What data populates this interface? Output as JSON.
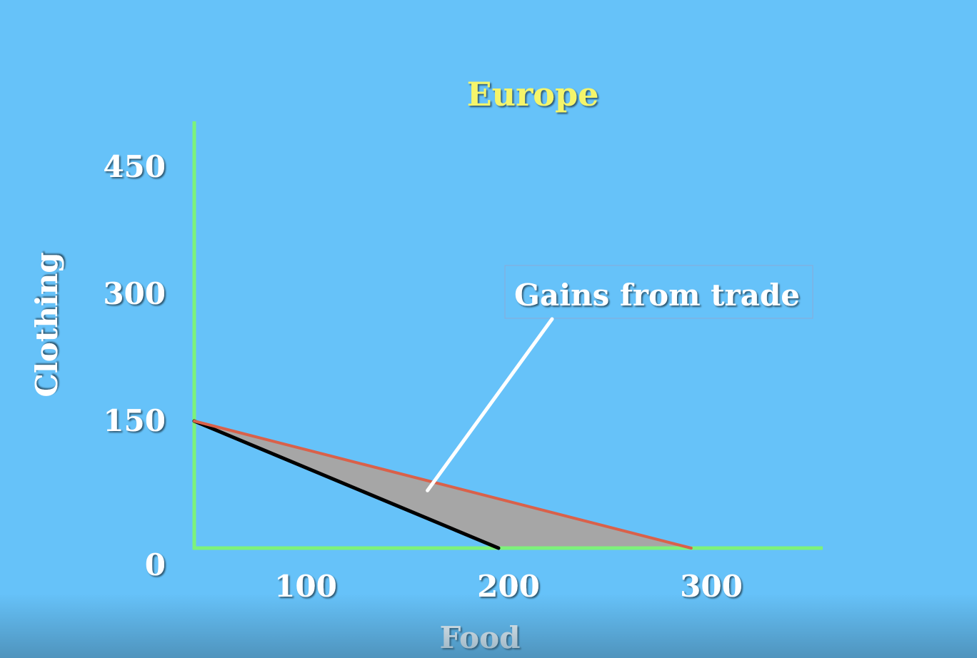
{
  "chart_data": {
    "type": "line",
    "title": "Europe",
    "xlabel": "Food",
    "ylabel": "Clothing",
    "x_ticks": [
      100,
      200,
      300
    ],
    "y_ticks": [
      0,
      150,
      300,
      450
    ],
    "xlim": [
      50,
      350
    ],
    "ylim": [
      0,
      450
    ],
    "series": [
      {
        "color": "#000000",
        "x": [
          50,
          200
        ],
        "y": [
          150,
          0
        ]
      },
      {
        "color": "#d9614a",
        "x": [
          50,
          295
        ],
        "y": [
          150,
          0
        ]
      }
    ],
    "shaded_region": {
      "color": "#a6a6a6",
      "x": [
        50,
        200,
        295
      ],
      "y": [
        150,
        0,
        0
      ]
    },
    "annotation": {
      "text": "Gains from trade",
      "point_to": {
        "x": 165,
        "y": 68
      }
    },
    "colors": {
      "background": "#66c2f9",
      "axis": "#7df27a",
      "title": "#f5f56a",
      "label": "#ffffff"
    }
  }
}
